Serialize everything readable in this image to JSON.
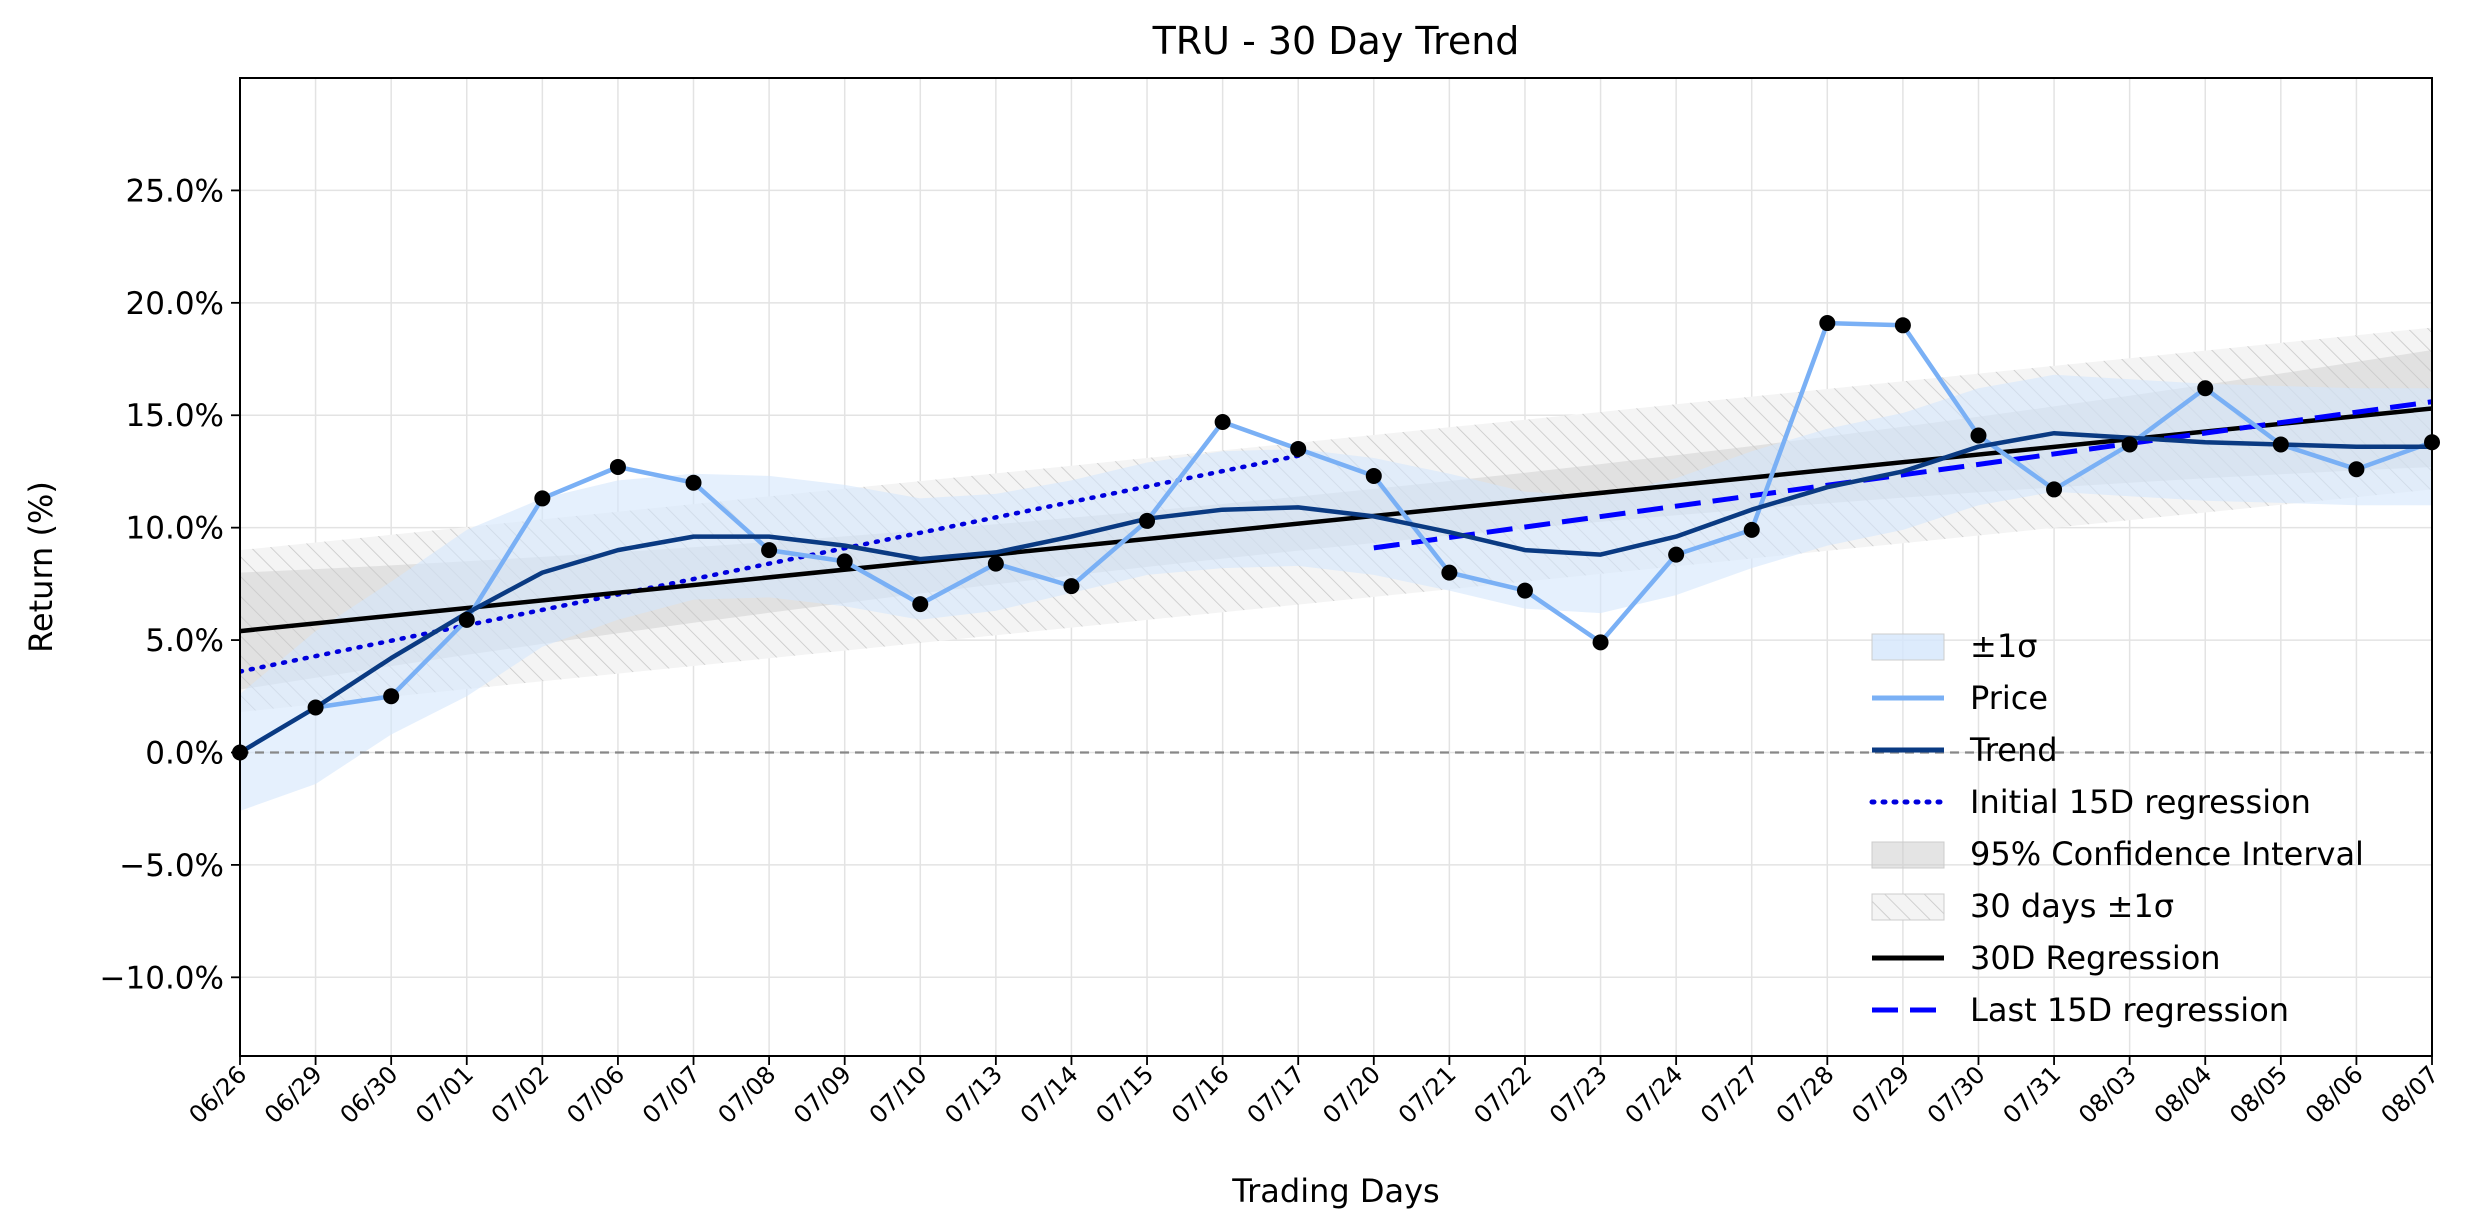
{
  "chart_data": {
    "type": "line",
    "title": "TRU - 30 Day Trend",
    "xlabel": "Trading Days",
    "ylabel": "Return (%)",
    "x": [
      "06/26",
      "06/29",
      "06/30",
      "07/01",
      "07/02",
      "07/06",
      "07/07",
      "07/08",
      "07/09",
      "07/10",
      "07/13",
      "07/14",
      "07/15",
      "07/16",
      "07/17",
      "07/20",
      "07/21",
      "07/22",
      "07/23",
      "07/24",
      "07/27",
      "07/28",
      "07/29",
      "07/30",
      "07/31",
      "08/03",
      "08/04",
      "08/05",
      "08/06",
      "08/07"
    ],
    "ylim": [
      -13.5,
      30
    ],
    "yticks": [
      -10,
      -5,
      0,
      5,
      10,
      15,
      20,
      25
    ],
    "ytick_labels": [
      "−10.0%",
      "−5.0%",
      "0.0%",
      "5.0%",
      "10.0%",
      "15.0%",
      "20.0%",
      "25.0%"
    ],
    "grid": true,
    "legend_position": "lower-right",
    "legend": [
      "±1σ",
      "Price",
      "Trend",
      "Initial 15D regression",
      "95% Confidence Interval",
      "30 days ±1σ",
      "30D Regression",
      "Last 15D regression"
    ],
    "colors": {
      "price": "#7ab0f5",
      "trend": "#0a3a82",
      "sigma_band": "#d4e6fb",
      "initial_regression": "#0000dd",
      "confidence_band": "#c9c9c9",
      "regression_30d": "#000000",
      "last_regression": "#0000ff",
      "zero_line": "#888888"
    },
    "series": [
      {
        "name": "Price",
        "values": [
          0.0,
          2.0,
          2.5,
          5.9,
          11.3,
          12.7,
          12.0,
          9.0,
          8.5,
          6.6,
          8.4,
          7.4,
          10.3,
          14.7,
          13.5,
          12.3,
          8.0,
          7.2,
          4.9,
          8.8,
          9.9,
          19.1,
          19.0,
          14.1,
          11.7,
          13.7,
          16.2,
          13.7,
          12.6,
          13.8
        ]
      },
      {
        "name": "Trend",
        "values": [
          0.0,
          2.0,
          4.2,
          6.2,
          8.0,
          9.0,
          9.6,
          9.6,
          9.2,
          8.6,
          8.9,
          9.6,
          10.4,
          10.8,
          10.9,
          10.5,
          9.8,
          9.0,
          8.8,
          9.6,
          10.8,
          11.8,
          12.5,
          13.6,
          14.2,
          14.0,
          13.8,
          13.7,
          13.6,
          13.6
        ]
      },
      {
        "name": "±1σ",
        "upper": [
          2.6,
          5.4,
          7.6,
          9.9,
          11.3,
          12.1,
          12.4,
          12.3,
          11.9,
          11.3,
          11.5,
          12.1,
          12.9,
          13.4,
          13.5,
          13.1,
          12.4,
          11.6,
          11.4,
          12.2,
          13.4,
          14.4,
          15.1,
          16.2,
          16.8,
          16.6,
          16.4,
          16.3,
          16.2,
          16.2
        ],
        "lower": [
          -2.6,
          -1.4,
          0.8,
          2.5,
          4.7,
          5.9,
          6.8,
          6.9,
          6.5,
          5.9,
          6.3,
          7.1,
          7.9,
          8.2,
          8.3,
          7.9,
          7.2,
          6.4,
          6.2,
          7.0,
          8.2,
          9.2,
          9.9,
          11.0,
          11.6,
          11.4,
          11.2,
          11.1,
          11.0,
          11.0
        ]
      },
      {
        "name": "30D Regression",
        "start": 5.4,
        "end": 15.3
      },
      {
        "name": "95% Confidence Interval",
        "half_width_start": 2.6,
        "half_width_mid": 1.2,
        "half_width_end": 2.6
      },
      {
        "name": "30 days ±1σ",
        "half_width": 3.6
      },
      {
        "name": "Initial 15D regression",
        "x_start_index": 0,
        "x_end_index": 14,
        "start": 3.6,
        "end": 13.2
      },
      {
        "name": "Last 15D regression",
        "x_start_index": 15,
        "x_end_index": 29,
        "start": 9.1,
        "end": 15.6
      }
    ]
  }
}
